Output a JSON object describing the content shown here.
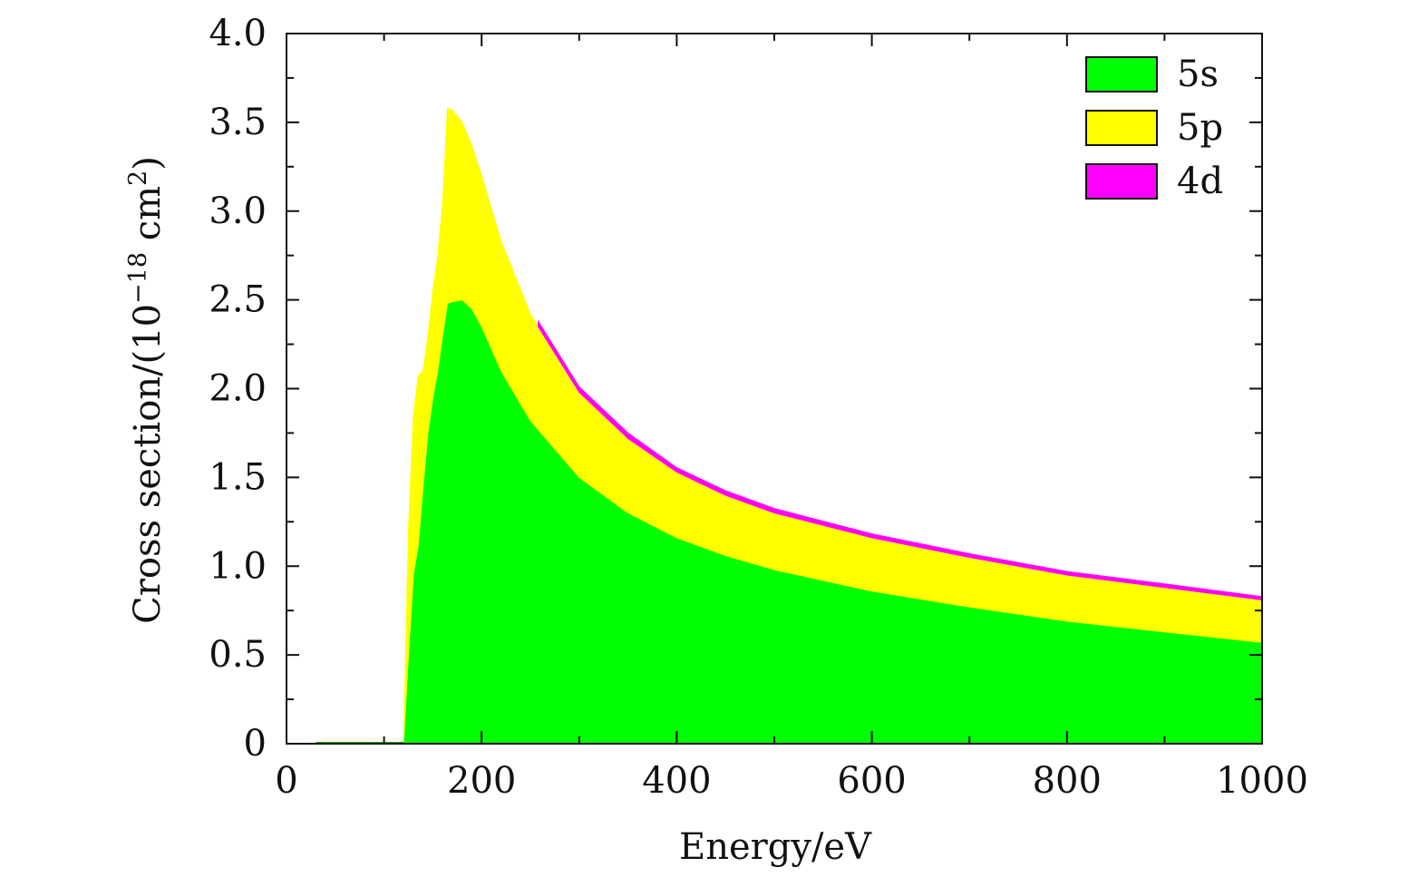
{
  "chart_data": {
    "type": "area",
    "stacked": true,
    "xlabel": "Energy/eV",
    "ylabel_main": "Cross section/(10",
    "ylabel_exp": "−18",
    "ylabel_unit": " cm",
    "ylabel_unit_exp": "2",
    "ylabel_close": ")",
    "xlim": [
      0,
      1000
    ],
    "ylim": [
      0,
      4.0
    ],
    "x_ticks": [
      0,
      200,
      400,
      600,
      800,
      1000
    ],
    "x_tick_labels": [
      "0",
      "200",
      "400",
      "600",
      "800",
      "1000"
    ],
    "y_ticks": [
      0,
      0.5,
      1.0,
      1.5,
      2.0,
      2.5,
      3.0,
      3.5,
      4.0
    ],
    "y_tick_labels": [
      "0",
      "0.5",
      "1.0",
      "1.5",
      "2.0",
      "2.5",
      "3.0",
      "3.5",
      "4.0"
    ],
    "grid": false,
    "legend_position": "top-right",
    "series": [
      {
        "name": "5s",
        "color": "#00ff00",
        "x": [
          30,
          120,
          125,
          130,
          135,
          140,
          145,
          150,
          155,
          160,
          165,
          170,
          180,
          190,
          200,
          220,
          250,
          300,
          350,
          400,
          450,
          500,
          600,
          700,
          800,
          900,
          1000
        ],
        "values": [
          0,
          0,
          0.5,
          0.95,
          1.12,
          1.45,
          1.75,
          1.95,
          2.1,
          2.3,
          2.48,
          2.49,
          2.5,
          2.45,
          2.35,
          2.1,
          1.82,
          1.5,
          1.3,
          1.16,
          1.06,
          0.98,
          0.86,
          0.77,
          0.69,
          0.63,
          0.57
        ]
      },
      {
        "name": "5p",
        "color": "#ffff00",
        "x": [
          30,
          120,
          125,
          130,
          135,
          140,
          145,
          150,
          155,
          160,
          165,
          170,
          180,
          190,
          200,
          220,
          250,
          300,
          350,
          400,
          450,
          500,
          600,
          700,
          800,
          900,
          1000
        ],
        "values": [
          0,
          0,
          0.7,
          0.9,
          0.95,
          0.65,
          0.55,
          0.6,
          0.65,
          0.75,
          1.1,
          1.08,
          1.0,
          0.92,
          0.85,
          0.73,
          0.6,
          0.48,
          0.42,
          0.37,
          0.34,
          0.32,
          0.3,
          0.28,
          0.26,
          0.25,
          0.24
        ]
      },
      {
        "name": "4d",
        "color": "#ff00ff",
        "x": [
          258,
          300,
          350,
          400,
          450,
          500,
          600,
          700,
          800,
          900,
          1000
        ],
        "values": [
          0.03,
          0.03,
          0.03,
          0.025,
          0.025,
          0.025,
          0.022,
          0.02,
          0.02,
          0.02,
          0.018
        ]
      }
    ]
  }
}
